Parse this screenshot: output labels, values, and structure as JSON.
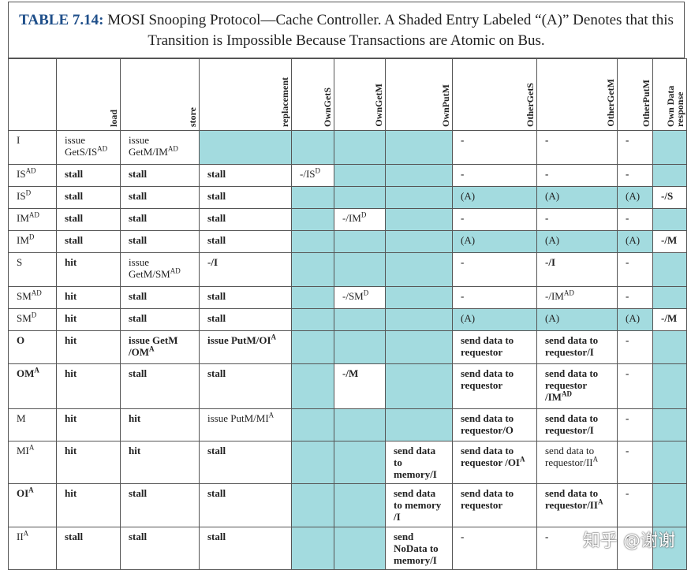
{
  "title": {
    "label": "TABLE 7.14:",
    "text": "MOSI Snooping Protocol—Cache Controller. A Shaded Entry Labeled “(A)” Denotes that this Transition is Impossible Because Transactions are Atomic on Bus."
  },
  "table": {
    "columns": [
      "load",
      "store",
      "replacement",
      "OwnGetS",
      "OwnGetM",
      "OwnPutM",
      "OtherGetS",
      "OtherGetM",
      "OtherPutM",
      "Own Data response"
    ],
    "rows": [
      {
        "state": "I",
        "height": 0,
        "cells": [
          {
            "text": "issue GetS/IS",
            "sup": "AD"
          },
          {
            "text": "issue GetM/IM",
            "sup": "AD"
          },
          null,
          null,
          null,
          null,
          "-",
          "-",
          "-",
          null
        ]
      },
      {
        "state": {
          "text": "IS",
          "sup": "AD"
        },
        "cells": [
          "stall",
          "stall",
          "stall",
          {
            "text": "-/IS",
            "sup": "D"
          },
          null,
          null,
          "-",
          "-",
          "-",
          null
        ]
      },
      {
        "state": {
          "text": "IS",
          "sup": "D"
        },
        "cells": [
          "stall",
          "stall",
          "stall",
          null,
          null,
          null,
          {
            "text": "(A)",
            "shaded": true
          },
          {
            "text": "(A)",
            "shaded": true
          },
          {
            "text": "(A)",
            "shaded": true
          },
          "-/S"
        ]
      },
      {
        "state": {
          "text": "IM",
          "sup": "AD"
        },
        "cells": [
          "stall",
          "stall",
          "stall",
          null,
          {
            "text": "-/IM",
            "sup": "D"
          },
          null,
          "-",
          "-",
          "-",
          null
        ]
      },
      {
        "state": {
          "text": "IM",
          "sup": "D"
        },
        "cells": [
          "stall",
          "stall",
          "stall",
          null,
          null,
          null,
          {
            "text": "(A)",
            "shaded": true
          },
          {
            "text": "(A)",
            "shaded": true
          },
          {
            "text": "(A)",
            "shaded": true
          },
          "-/M"
        ]
      },
      {
        "state": "S",
        "cells": [
          "hit",
          {
            "text": "issue GetM/SM",
            "sup": "AD"
          },
          "-/I",
          null,
          null,
          null,
          "-",
          "-/I",
          "-",
          null
        ]
      },
      {
        "state": {
          "text": "SM",
          "sup": "AD"
        },
        "cells": [
          "hit",
          "stall",
          "stall",
          null,
          {
            "text": "-/SM",
            "sup": "D"
          },
          null,
          "-",
          {
            "text": "-/IM",
            "sup": "AD"
          },
          "-",
          null
        ]
      },
      {
        "state": {
          "text": "SM",
          "sup": "D"
        },
        "cells": [
          "hit",
          "stall",
          "stall",
          null,
          null,
          null,
          {
            "text": "(A)",
            "shaded": true
          },
          {
            "text": "(A)",
            "shaded": true
          },
          {
            "text": "(A)",
            "shaded": true
          },
          "-/M"
        ]
      },
      {
        "state": "O",
        "bold": true,
        "cells": [
          "hit",
          {
            "text": "issue GetM /OM",
            "sup": "A"
          },
          {
            "text": "issue PutM/OI",
            "sup": "A"
          },
          null,
          null,
          null,
          "send data to requestor",
          "send data to requestor/I",
          "-",
          null
        ]
      },
      {
        "state": {
          "text": "OM",
          "sup": "A"
        },
        "bold": true,
        "cells": [
          "hit",
          "stall",
          "stall",
          null,
          "-/M",
          null,
          "send data to requestor",
          {
            "text": "send data to requestor /IM",
            "sup": "AD"
          },
          "-",
          null
        ]
      },
      {
        "state": "M",
        "cells": [
          "hit",
          "hit",
          {
            "text": "issue PutM/MI",
            "sup": "A"
          },
          null,
          null,
          null,
          {
            "text": "send data to requestor/O",
            "bold": true
          },
          "send data to requestor/I",
          "-",
          null
        ]
      },
      {
        "state": {
          "text": "MI",
          "sup": "A"
        },
        "cells": [
          "hit",
          "hit",
          "stall",
          null,
          null,
          "send data to memory/I",
          {
            "text": "send data to requestor /OI",
            "sup": "A",
            "bold": true
          },
          {
            "text": "send data to requestor/II",
            "sup": "A"
          },
          "-",
          null
        ]
      },
      {
        "state": {
          "text": "OI",
          "sup": "A"
        },
        "bold": true,
        "cells": [
          "hit",
          "stall",
          "stall",
          null,
          null,
          "send data to memory /I",
          "send data to requestor",
          {
            "text": "send data to requestor/II",
            "sup": "A"
          },
          "-",
          null
        ]
      },
      {
        "state": {
          "text": "II",
          "sup": "A"
        },
        "cells": [
          "stall",
          "stall",
          "stall",
          null,
          null,
          "send NoData to memory/I",
          "-",
          "-",
          "-",
          null
        ]
      }
    ]
  },
  "watermark": "知乎 @谢谢"
}
